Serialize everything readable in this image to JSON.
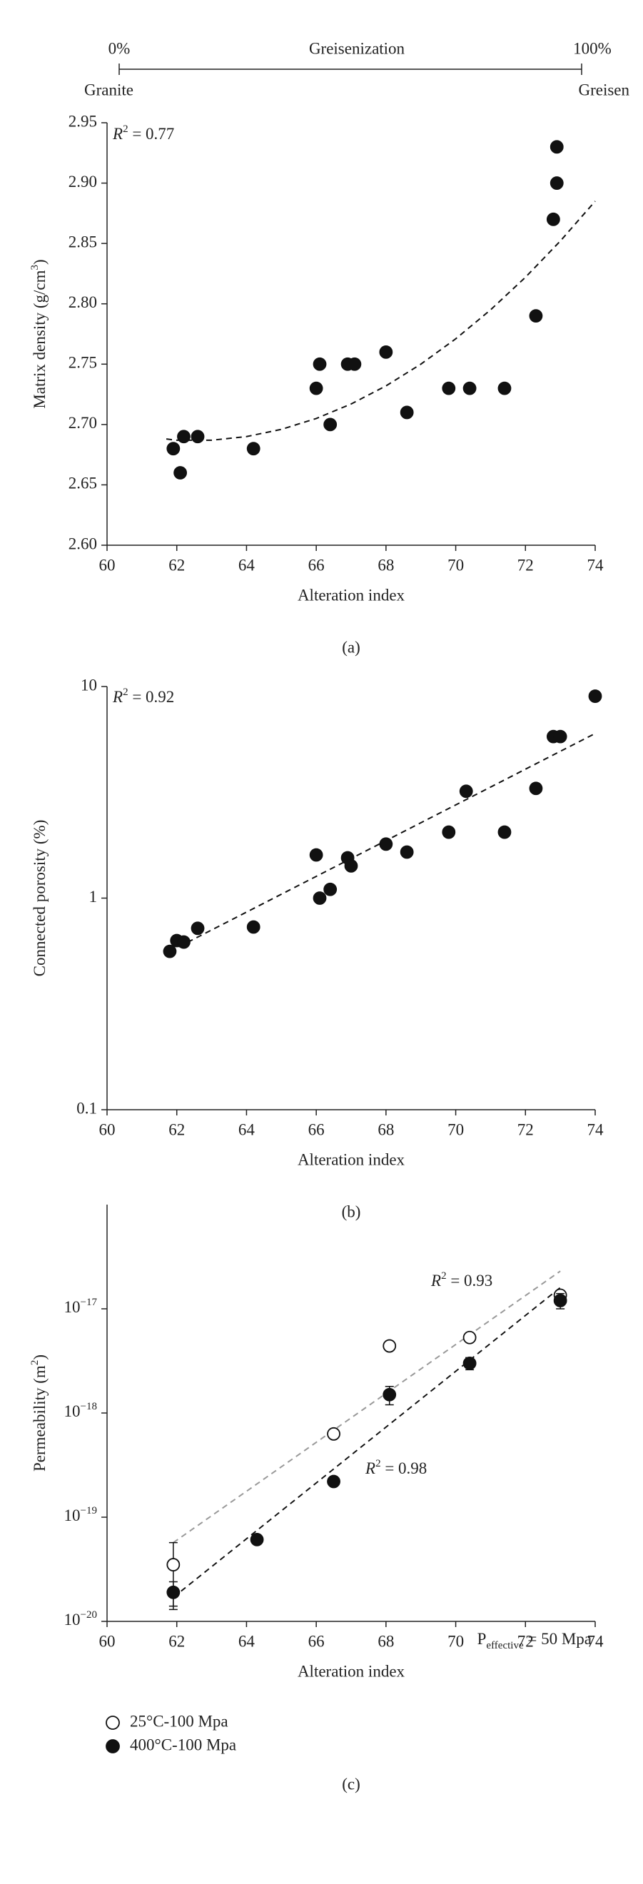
{
  "chart_data": [
    {
      "type": "scatter",
      "scale_bar": {
        "left": "0%",
        "center": "Greisenization",
        "right": "100%",
        "left_end": "Granite",
        "right_end": "Greisen"
      },
      "ylabel": [
        {
          "t": "Matrix density (g/cm"
        },
        {
          "t": "3",
          "sup": true
        },
        {
          "t": ")"
        }
      ],
      "xlabel": "Alteration index",
      "caption": "(a)",
      "annotation": [
        {
          "t": "R",
          "italic": true
        },
        {
          "t": "2",
          "sup": true
        },
        {
          "t": " = 0.77"
        }
      ],
      "xlim": [
        60,
        74
      ],
      "xticks": [
        60,
        62,
        64,
        66,
        68,
        70,
        72,
        74
      ],
      "ylim": [
        2.6,
        2.95
      ],
      "yticks": [
        {
          "value": 2.6,
          "label": "2.60"
        },
        {
          "value": 2.65,
          "label": "2.65"
        },
        {
          "value": 2.7,
          "label": "2.70"
        },
        {
          "value": 2.75,
          "label": "2.75"
        },
        {
          "value": 2.8,
          "label": "2.80"
        },
        {
          "value": 2.85,
          "label": "2.85"
        },
        {
          "value": 2.9,
          "label": "2.90"
        },
        {
          "value": 2.95,
          "label": "2.95"
        }
      ],
      "log_y": false,
      "series": [
        {
          "color": "#111111",
          "filled": true,
          "x": [
            61.9,
            62.1,
            62.2,
            62.6,
            64.2,
            66.0,
            66.1,
            66.4,
            66.9,
            67.1,
            68.0,
            68.6,
            69.8,
            70.4,
            71.4,
            72.3,
            72.8,
            72.9,
            72.9
          ],
          "values": [
            2.68,
            2.66,
            2.69,
            2.69,
            2.68,
            2.73,
            2.75,
            2.7,
            2.75,
            2.75,
            2.76,
            2.71,
            2.73,
            2.73,
            2.73,
            2.79,
            2.87,
            2.9,
            2.93
          ]
        }
      ],
      "fits": [
        {
          "color": "#111111",
          "x": [
            61.7,
            62,
            63,
            64,
            65,
            66,
            67,
            68,
            69,
            70,
            71,
            72,
            73,
            74
          ],
          "y": [
            2.688,
            2.687,
            2.687,
            2.69,
            2.696,
            2.705,
            2.717,
            2.732,
            2.75,
            2.771,
            2.795,
            2.822,
            2.852,
            2.885
          ]
        }
      ]
    },
    {
      "type": "scatter",
      "ylabel": [
        {
          "t": "Connected porosity (%)"
        }
      ],
      "xlabel": "Alteration index",
      "caption": "(b)",
      "annotation": [
        {
          "t": "R",
          "italic": true
        },
        {
          "t": "2",
          "sup": true
        },
        {
          "t": " = 0.92"
        }
      ],
      "xlim": [
        60,
        74
      ],
      "xticks": [
        60,
        62,
        64,
        66,
        68,
        70,
        72,
        74
      ],
      "ylim": [
        0.1,
        10
      ],
      "yticks": [
        0.1,
        1,
        10
      ],
      "log_y": true,
      "series": [
        {
          "color": "#111111",
          "filled": true,
          "x": [
            61.8,
            62.0,
            62.2,
            62.6,
            64.2,
            66.0,
            66.1,
            66.4,
            66.9,
            67.0,
            68.0,
            68.6,
            69.8,
            70.3,
            71.4,
            72.3,
            72.8,
            73.0,
            74.0
          ],
          "values": [
            0.56,
            0.63,
            0.62,
            0.72,
            0.73,
            1.6,
            1.0,
            1.1,
            1.55,
            1.42,
            1.8,
            1.65,
            2.05,
            3.2,
            2.05,
            3.3,
            5.8,
            5.8,
            9.0
          ]
        }
      ],
      "fits": [
        {
          "color": "#111111",
          "x": [
            61.8,
            74
          ],
          "y": [
            0.56,
            6.0
          ]
        }
      ]
    },
    {
      "type": "scatter",
      "ylabel": [
        {
          "t": "Permeability (m"
        },
        {
          "t": "2",
          "sup": true
        },
        {
          "t": ")"
        }
      ],
      "xlabel": "Alteration index",
      "caption": "(c)",
      "annotation": [
        {
          "t": "P"
        },
        {
          "t": "effective",
          "sub": true
        },
        {
          "t": " = 50 Mpa"
        }
      ],
      "xlim": [
        60,
        74
      ],
      "xticks": [
        60,
        62,
        64,
        66,
        68,
        70,
        72,
        74
      ],
      "ylim": [
        1e-20,
        1e-16
      ],
      "yticks": [
        {
          "value": 1e-20,
          "label": [
            {
              "t": "10"
            },
            {
              "t": "−20",
              "sup": true
            }
          ]
        },
        {
          "value": 1e-19,
          "label": [
            {
              "t": "10"
            },
            {
              "t": "−19",
              "sup": true
            }
          ]
        },
        {
          "value": 1e-18,
          "label": [
            {
              "t": "10"
            },
            {
              "t": "−18",
              "sup": true
            }
          ]
        },
        {
          "value": 1e-17,
          "label": [
            {
              "t": "10"
            },
            {
              "t": "−17",
              "sup": true
            }
          ]
        }
      ],
      "log_y": true,
      "legend": "below",
      "series": [
        {
          "name": "25°C-100 Mpa",
          "color": "#111111",
          "filled": false,
          "x": [
            61.9,
            66.5,
            68.1,
            70.4,
            73.0
          ],
          "values": [
            3.5e-20,
            6.3e-19,
            4.4e-18,
            5.3e-18,
            1.35e-17
          ],
          "errors": [
            2.2e-20,
            6e-20,
            0,
            0,
            1.5e-18
          ]
        },
        {
          "name": "400°C-100 Mpa",
          "color": "#111111",
          "filled": true,
          "x": [
            61.9,
            64.3,
            66.5,
            68.1,
            70.4,
            73.0
          ],
          "values": [
            1.9e-20,
            6.1e-20,
            2.2e-19,
            1.5e-18,
            3e-18,
            1.2e-17
          ],
          "errors": [
            5e-21,
            6e-21,
            2e-20,
            3e-19,
            4e-19,
            2e-18
          ]
        }
      ],
      "fits": [
        {
          "color": "#999999",
          "x": [
            61.9,
            73.0
          ],
          "y": [
            5.7e-20,
            2.3e-17
          ],
          "label": [
            {
              "t": "R",
              "italic": true
            },
            {
              "t": "2",
              "sup": true
            },
            {
              "t": " = 0.93"
            }
          ]
        },
        {
          "color": "#111111",
          "x": [
            61.9,
            73.0
          ],
          "y": [
            1.7e-20,
            1.6e-17
          ],
          "label": [
            {
              "t": "R",
              "italic": true
            },
            {
              "t": "2",
              "sup": true
            },
            {
              "t": " = 0.98"
            }
          ]
        }
      ]
    }
  ]
}
